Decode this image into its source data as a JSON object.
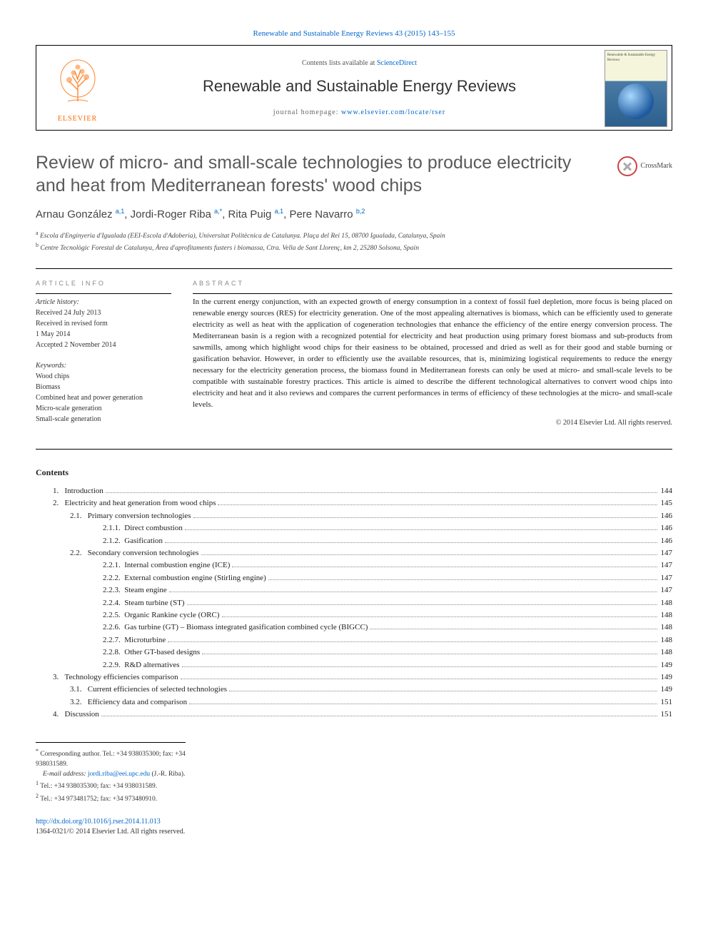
{
  "top": {
    "citation_link_text": "Renewable and Sustainable Energy Reviews 43 (2015) 143–155"
  },
  "header": {
    "contents_prefix": "Contents lists available at ",
    "contents_link": "ScienceDirect",
    "journal_name": "Renewable and Sustainable Energy Reviews",
    "homepage_prefix": "journal homepage: ",
    "homepage_url": "www.elsevier.com/locate/rser",
    "publisher": "ELSEVIER",
    "cover_title": "Renewable & Sustainable Energy Reviews"
  },
  "crossmark": {
    "label": "CrossMark"
  },
  "article": {
    "title": "Review of micro- and small-scale technologies to produce electricity and heat from Mediterranean forests' wood chips",
    "authors_html_parts": {
      "a1_name": "Arnau González",
      "a1_sup": "a,1",
      "a2_name": "Jordi-Roger Riba",
      "a2_sup": "a,*",
      "a3_name": "Rita Puig",
      "a3_sup": "a,1",
      "a4_name": "Pere Navarro",
      "a4_sup": "b,2"
    },
    "affiliations": {
      "a": "Escola d'Enginyeria d'Igualada (EEI-Escola d'Adoberia), Universitat Politècnica de Catalunya. Plaça del Rei 15, 08700 Igualada, Catalunya, Spain",
      "b": "Centre Tecnològic Forestal de Catalunya, Àrea d'aprofitaments fusters i biomassa, Ctra. Vella de Sant Llorenç, km 2, 25280 Solsona, Spain"
    }
  },
  "article_info": {
    "heading": "ARTICLE INFO",
    "history_label": "Article history:",
    "received": "Received 24 July 2013",
    "revised": "Received in revised form",
    "revised_date": "1 May 2014",
    "accepted": "Accepted 2 November 2014",
    "keywords_label": "Keywords:",
    "keywords": [
      "Wood chips",
      "Biomass",
      "Combined heat and power generation",
      "Micro-scale generation",
      "Small-scale generation"
    ]
  },
  "abstract": {
    "heading": "ABSTRACT",
    "text": "In the current energy conjunction, with an expected growth of energy consumption in a context of fossil fuel depletion, more focus is being placed on renewable energy sources (RES) for electricity generation. One of the most appealing alternatives is biomass, which can be efficiently used to generate electricity as well as heat with the application of cogeneration technologies that enhance the efficiency of the entire energy conversion process. The Mediterranean basin is a region with a recognized potential for electricity and heat production using primary forest biomass and sub-products from sawmills, among which highlight wood chips for their easiness to be obtained, processed and dried as well as for their good and stable burning or gasification behavior. However, in order to efficiently use the available resources, that is, minimizing logistical requirements to reduce the energy necessary for the electricity generation process, the biomass found in Mediterranean forests can only be used at micro- and small-scale levels to be compatible with sustainable forestry practices. This article is aimed to describe the different technological alternatives to convert wood chips into electricity and heat and it also reviews and compares the current performances in terms of efficiency of these technologies at the micro- and small-scale levels.",
    "copyright": "© 2014 Elsevier Ltd. All rights reserved."
  },
  "contents": {
    "heading": "Contents",
    "items": [
      {
        "num": "1.",
        "title": "Introduction",
        "page": "144",
        "level": 1
      },
      {
        "num": "2.",
        "title": "Electricity and heat generation from wood chips ",
        "page": "145",
        "level": 1
      },
      {
        "num": "2.1.",
        "title": "Primary conversion technologies ",
        "page": "146",
        "level": 2
      },
      {
        "num": "2.1.1.",
        "title": "Direct combustion ",
        "page": "146",
        "level": 3
      },
      {
        "num": "2.1.2.",
        "title": "Gasification",
        "page": "146",
        "level": 3
      },
      {
        "num": "2.2.",
        "title": "Secondary conversion technologies ",
        "page": "147",
        "level": 2
      },
      {
        "num": "2.2.1.",
        "title": "Internal combustion engine (ICE) ",
        "page": "147",
        "level": 3
      },
      {
        "num": "2.2.2.",
        "title": "External combustion engine (Stirling engine) ",
        "page": "147",
        "level": 3
      },
      {
        "num": "2.2.3.",
        "title": "Steam engine ",
        "page": "147",
        "level": 3
      },
      {
        "num": "2.2.4.",
        "title": "Steam turbine (ST)",
        "page": "148",
        "level": 3
      },
      {
        "num": "2.2.5.",
        "title": "Organic Rankine cycle (ORC)",
        "page": "148",
        "level": 3
      },
      {
        "num": "2.2.6.",
        "title": "Gas turbine (GT) – Biomass integrated gasification combined cycle (BIGCC) ",
        "page": "148",
        "level": 3
      },
      {
        "num": "2.2.7.",
        "title": "Microturbine ",
        "page": "148",
        "level": 3
      },
      {
        "num": "2.2.8.",
        "title": "Other GT-based designs",
        "page": "148",
        "level": 3
      },
      {
        "num": "2.2.9.",
        "title": "R&D alternatives ",
        "page": "149",
        "level": 3
      },
      {
        "num": "3.",
        "title": "Technology efficiencies comparison ",
        "page": "149",
        "level": 1
      },
      {
        "num": "3.1.",
        "title": "Current efficiencies of selected technologies ",
        "page": "149",
        "level": 2
      },
      {
        "num": "3.2.",
        "title": "Efficiency data and comparison ",
        "page": "151",
        "level": 2
      },
      {
        "num": "4.",
        "title": "Discussion ",
        "page": "151",
        "level": 1
      }
    ]
  },
  "footnotes": {
    "corr": "Corresponding author. Tel.: +34 938035300; fax: +34 938031589.",
    "email_label": "E-mail address: ",
    "email": "jordi.riba@eei.upc.edu",
    "email_suffix": " (J.-R. Riba).",
    "fn1": "Tel.: +34 938035300; fax: +34 938031589.",
    "fn2": "Tel.: +34 973481752; fax: +34 973480910."
  },
  "bottom": {
    "doi": "http://dx.doi.org/10.1016/j.rser.2014.11.013",
    "issn_line": "1364-0321/© 2014 Elsevier Ltd. All rights reserved."
  },
  "style": {
    "link_color": "#0066cc",
    "text_color": "#222222",
    "elsevier_orange": "#ff6600",
    "title_color": "#5a5a5a"
  }
}
